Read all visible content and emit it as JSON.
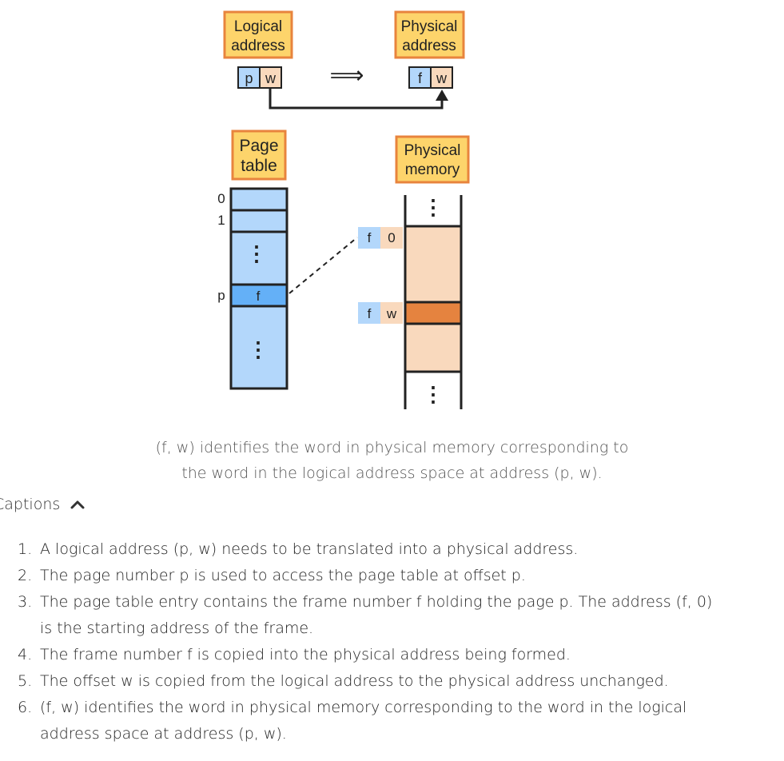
{
  "diagram": {
    "logical_address_label": "Logical address",
    "logical_address_line1": "Logical",
    "logical_address_line2": "address",
    "physical_address_line1": "Physical",
    "physical_address_line2": "address",
    "page_table_line1": "Page",
    "page_table_line2": "table",
    "physical_memory_line1": "Physical",
    "physical_memory_line2": "memory",
    "cell_p": "p",
    "cell_w": "w",
    "cell_f": "f",
    "cell_0": "0",
    "row_label_0": "0",
    "row_label_1": "1",
    "row_label_p": "p",
    "entry_f": "f",
    "ellipsis": "⋮",
    "arrow": "⟹",
    "colors": {
      "label_fill": "#fdd46b",
      "label_border": "#e8843d",
      "blue_cell": "#b3d7fb",
      "blue_highlight": "#64b0f7",
      "peach_cell": "#f9d9bd",
      "orange_row": "#e5833f",
      "line": "#222222"
    }
  },
  "caption": {
    "line1": "(f, w) identifies the word in physical memory corresponding to",
    "line2": "the word in the logical address space at address (p, w)."
  },
  "captions_toggle": {
    "label": "Captions"
  },
  "steps": [
    {
      "num": "1.",
      "text": "A logical address (p, w) needs to be translated into a physical address."
    },
    {
      "num": "2.",
      "text": "The page number p is used to access the page table at offset p."
    },
    {
      "num": "3.",
      "line1": "The page table entry contains the frame number f holding the page p. The address (f, 0)",
      "line2": "is the starting address of the frame."
    },
    {
      "num": "4.",
      "text": "The frame number f is copied into the physical address being formed."
    },
    {
      "num": "5.",
      "text": "The offset w is copied from the logical address to the physical address unchanged."
    },
    {
      "num": "6.",
      "line1": "(f, w) identifies the word in physical memory corresponding to the word in the logical",
      "line2": "address space at address (p, w)."
    }
  ]
}
